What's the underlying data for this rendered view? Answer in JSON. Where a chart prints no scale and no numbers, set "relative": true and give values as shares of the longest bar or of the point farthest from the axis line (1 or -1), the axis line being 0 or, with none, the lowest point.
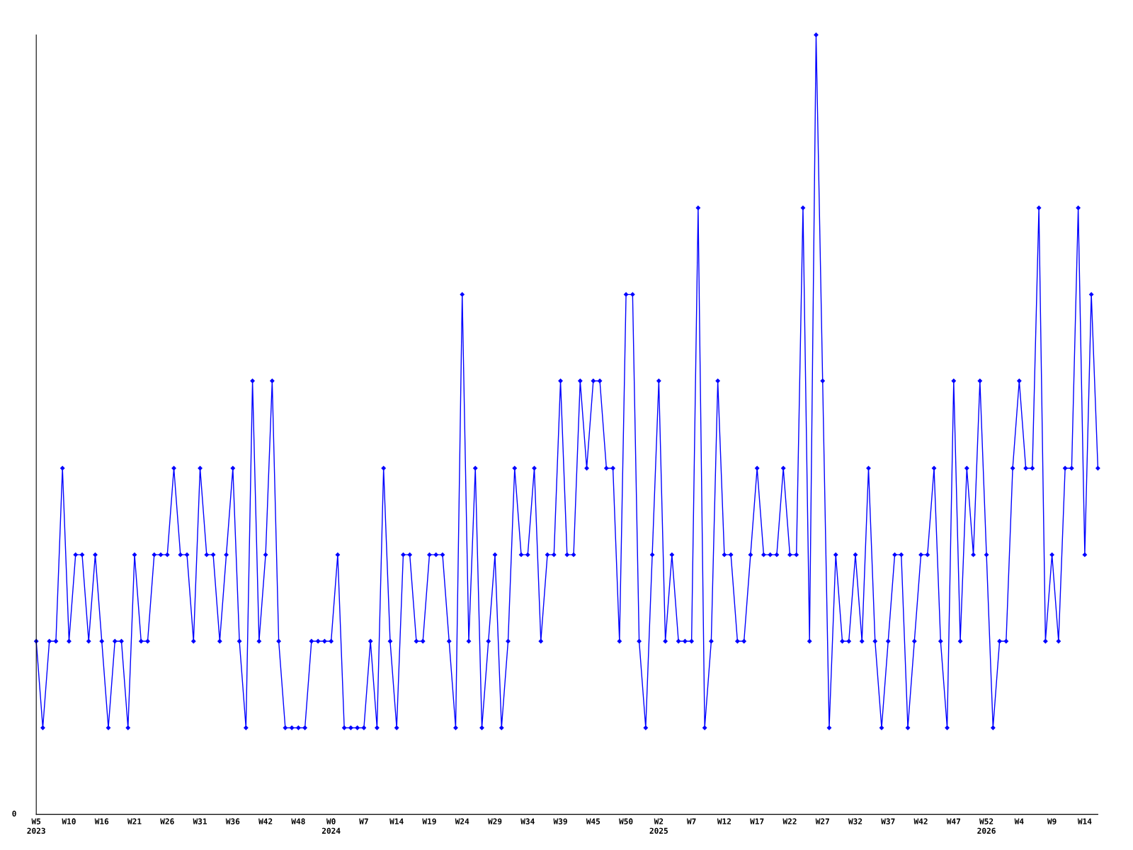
{
  "chart_data": {
    "type": "line",
    "relative": true,
    "marker": "diamond",
    "line_style": "solid",
    "grid": false,
    "legend": false,
    "annotations": [
      "0"
    ],
    "categories": [
      "W5\n2023",
      null,
      null,
      null,
      null,
      "W10",
      null,
      null,
      null,
      null,
      "W16",
      null,
      null,
      null,
      null,
      "W21",
      null,
      null,
      null,
      null,
      "W26",
      null,
      null,
      null,
      null,
      "W31",
      null,
      null,
      null,
      null,
      "W36",
      null,
      null,
      null,
      null,
      "W42",
      null,
      null,
      null,
      null,
      "W48",
      null,
      null,
      null,
      null,
      "W0\n2024",
      null,
      null,
      null,
      null,
      "W7",
      null,
      null,
      null,
      null,
      "W14",
      null,
      null,
      null,
      null,
      "W19",
      null,
      null,
      null,
      null,
      "W24",
      null,
      null,
      null,
      null,
      "W29",
      null,
      null,
      null,
      null,
      "W34",
      null,
      null,
      null,
      null,
      "W39",
      null,
      null,
      null,
      null,
      "W45",
      null,
      null,
      null,
      null,
      "W50",
      null,
      null,
      null,
      null,
      "W2\n2025",
      null,
      null,
      null,
      null,
      "W7",
      null,
      null,
      null,
      null,
      "W12",
      null,
      null,
      null,
      null,
      "W17",
      null,
      null,
      null,
      null,
      "W22",
      null,
      null,
      null,
      null,
      "W27",
      null,
      null,
      null,
      null,
      "W32",
      null,
      null,
      null,
      null,
      "W37",
      null,
      null,
      null,
      null,
      "W42",
      null,
      null,
      null,
      null,
      "W47",
      null,
      null,
      null,
      null,
      "W52\n2026",
      null,
      null,
      null,
      null,
      "W4",
      null,
      null,
      null,
      null,
      "W9",
      null,
      null,
      null,
      null,
      "W14",
      null,
      null
    ],
    "series": [
      {
        "color": "#0000ff",
        "values": [
          0.222,
          0.111,
          0.222,
          0.222,
          0.444,
          0.222,
          0.333,
          0.333,
          0.222,
          0.333,
          0.222,
          0.111,
          0.222,
          0.222,
          0.111,
          0.333,
          0.222,
          0.222,
          0.333,
          0.333,
          0.333,
          0.444,
          0.333,
          0.333,
          0.222,
          0.444,
          0.333,
          0.333,
          0.222,
          0.333,
          0.444,
          0.222,
          0.111,
          0.556,
          0.222,
          0.333,
          0.556,
          0.222,
          0.111,
          0.111,
          0.111,
          0.111,
          0.222,
          0.222,
          0.222,
          0.222,
          0.333,
          0.111,
          0.111,
          0.111,
          0.111,
          0.222,
          0.111,
          0.444,
          0.222,
          0.111,
          0.333,
          0.333,
          0.222,
          0.222,
          0.333,
          0.333,
          0.333,
          0.222,
          0.111,
          0.667,
          0.222,
          0.444,
          0.111,
          0.222,
          0.333,
          0.111,
          0.222,
          0.444,
          0.333,
          0.333,
          0.444,
          0.222,
          0.333,
          0.333,
          0.556,
          0.333,
          0.333,
          0.556,
          0.444,
          0.556,
          0.556,
          0.444,
          0.444,
          0.222,
          0.667,
          0.667,
          0.222,
          0.111,
          0.333,
          0.556,
          0.222,
          0.333,
          0.222,
          0.222,
          0.222,
          0.778,
          0.111,
          0.222,
          0.556,
          0.333,
          0.333,
          0.222,
          0.222,
          0.333,
          0.444,
          0.333,
          0.333,
          0.333,
          0.444,
          0.333,
          0.333,
          0.778,
          0.222,
          1,
          0.556,
          0.111,
          0.333,
          0.222,
          0.222,
          0.333,
          0.222,
          0.444,
          0.222,
          0.111,
          0.222,
          0.333,
          0.333,
          0.111,
          0.222,
          0.333,
          0.333,
          0.444,
          0.222,
          0.111,
          0.556,
          0.222,
          0.444,
          0.333,
          0.556,
          0.333,
          0.111,
          0.222,
          0.222,
          0.444,
          0.556,
          0.444,
          0.444,
          0.778,
          0.222,
          0.333,
          0.222,
          0.444,
          0.444,
          0.778,
          0.333,
          0.667,
          0.444
        ]
      }
    ]
  }
}
